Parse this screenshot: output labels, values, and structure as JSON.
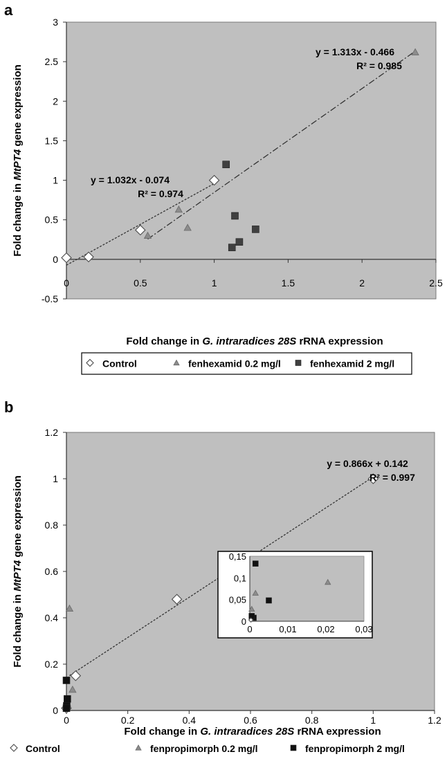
{
  "chart_data": [
    {
      "panel_label": "a",
      "type": "scatter",
      "ylabel": {
        "pre": "Fold change in ",
        "ital": "MtPT4",
        "post": " gene expression"
      },
      "xlabel": {
        "pre": "Fold change in  ",
        "ital": "G. intraradices 28S",
        "post": " rRNA expression"
      },
      "xlim": [
        0,
        2.5
      ],
      "ylim": [
        -0.5,
        3
      ],
      "xticks": [
        0,
        0.5,
        1,
        1.5,
        2,
        2.5
      ],
      "yticks": [
        -0.5,
        0,
        0.5,
        1,
        1.5,
        2,
        2.5,
        3
      ],
      "xtick_labels": [
        "0",
        "0.5",
        "1",
        "1.5",
        "2",
        "2.5"
      ],
      "ytick_labels": [
        "-0.5",
        "0",
        "0.5",
        "1",
        "1.5",
        "2",
        "2.5",
        "3"
      ],
      "series": [
        {
          "name": "Control",
          "marker": "diamond",
          "color": "#ffffff",
          "points": [
            [
              0,
              0.02
            ],
            [
              0.15,
              0.03
            ],
            [
              0.5,
              0.37
            ],
            [
              1.0,
              1.0
            ]
          ]
        },
        {
          "name": "fenhexamid 0.2 mg/l",
          "marker": "triangle",
          "color": "#8c8c8c",
          "points": [
            [
              0.55,
              0.3
            ],
            [
              0.76,
              0.63
            ],
            [
              0.82,
              0.4
            ],
            [
              2.36,
              2.62
            ]
          ]
        },
        {
          "name": "fenhexamid 2 mg/l",
          "marker": "square",
          "color": "#404040",
          "points": [
            [
              1.08,
              1.2
            ],
            [
              1.12,
              0.15
            ],
            [
              1.14,
              0.55
            ],
            [
              1.17,
              0.22
            ],
            [
              1.28,
              0.38
            ]
          ]
        }
      ],
      "trendlines": [
        {
          "style": "dotted",
          "x": [
            0,
            1.0
          ],
          "slope": 1.032,
          "intercept": -0.074
        },
        {
          "style": "dashdot",
          "x": [
            0.55,
            2.36
          ],
          "slope": 1.313,
          "intercept": -0.466
        }
      ],
      "annotations": [
        {
          "line1": "y = 1.032x - 0.074",
          "line2": "R² = 0.974"
        },
        {
          "line1": "y = 1.313x - 0.466",
          "line2": "R² = 0.985"
        }
      ],
      "legend": [
        "Control",
        "fenhexamid 0.2 mg/l",
        "fenhexamid 2 mg/l"
      ]
    },
    {
      "panel_label": "b",
      "type": "scatter",
      "ylabel": {
        "pre": "Fold change in ",
        "ital": "MtPT4",
        "post": " gene expression"
      },
      "xlabel": {
        "pre": "Fold change in  ",
        "ital": "G. intraradices 28S",
        "post": " rRNA expression"
      },
      "xlim": [
        0,
        1.2
      ],
      "ylim": [
        0,
        1.2
      ],
      "xticks": [
        0,
        0.2,
        0.4,
        0.6,
        0.8,
        1,
        1.2
      ],
      "yticks": [
        0,
        0.2,
        0.4,
        0.6,
        0.8,
        1,
        1.2
      ],
      "xtick_labels": [
        "0",
        "0.2",
        "0.4",
        "0.6",
        "0.8",
        "1",
        "1.2"
      ],
      "ytick_labels": [
        "0",
        "0.2",
        "0.4",
        "0.6",
        "0.8",
        "1",
        "1.2"
      ],
      "series": [
        {
          "name": "Control",
          "marker": "diamond",
          "color": "#ffffff",
          "points": [
            [
              0,
              0.01
            ],
            [
              0.03,
              0.15
            ],
            [
              0.36,
              0.48
            ],
            [
              1.0,
              1.0
            ]
          ]
        },
        {
          "name": "fenpropimorph 0.2 mg/l",
          "marker": "triangle",
          "color": "#8c8c8c",
          "points": [
            [
              0.01,
              0.44
            ],
            [
              0.02,
              0.09
            ],
            [
              0.003,
              0.03
            ]
          ]
        },
        {
          "name": "fenpropimorph 2 mg/l",
          "marker": "square",
          "color": "#111111",
          "points": [
            [
              0.0,
              0.13
            ],
            [
              0.003,
              0.05
            ],
            [
              0.001,
              0.02
            ],
            [
              0.0,
              0.01
            ]
          ]
        }
      ],
      "trendlines": [
        {
          "style": "dotted",
          "x": [
            0.01,
            1.0
          ],
          "slope": 0.866,
          "intercept": 0.142
        }
      ],
      "annotations": [
        {
          "line1": "y = 0.866x + 0.142",
          "line2": "R² = 0.997"
        }
      ],
      "inset": {
        "xlim": [
          0,
          0.03
        ],
        "ylim": [
          0,
          0.15
        ],
        "xticks": [
          0,
          0.01,
          0.02,
          0.03
        ],
        "yticks": [
          0,
          0.05,
          0.1,
          0.15
        ],
        "xtick_labels": [
          "0",
          "0,01",
          "0,02",
          "0,03"
        ],
        "ytick_labels": [
          "0",
          "0,05",
          "0,1",
          "0,15"
        ],
        "series": [
          {
            "name": "fenpropimorph 0.2 mg/l",
            "marker": "triangle",
            "color": "#8c8c8c",
            "points": [
              [
                0.0005,
                0.028
              ],
              [
                0.0015,
                0.065
              ],
              [
                0.0205,
                0.09
              ]
            ]
          },
          {
            "name": "fenpropimorph 2 mg/l",
            "marker": "square",
            "color": "#111111",
            "points": [
              [
                0.0015,
                0.133
              ],
              [
                0.005,
                0.048
              ],
              [
                0.001,
                0.008
              ],
              [
                0.0005,
                0.012
              ]
            ]
          },
          {
            "name": "Control",
            "marker": "diamond",
            "color": "#ffffff",
            "points": [
              [
                0.0003,
                0.003
              ]
            ]
          }
        ]
      },
      "legend": [
        "Control",
        "fenpropimorph 0.2 mg/l",
        "fenpropimorph 2 mg/l"
      ]
    }
  ]
}
